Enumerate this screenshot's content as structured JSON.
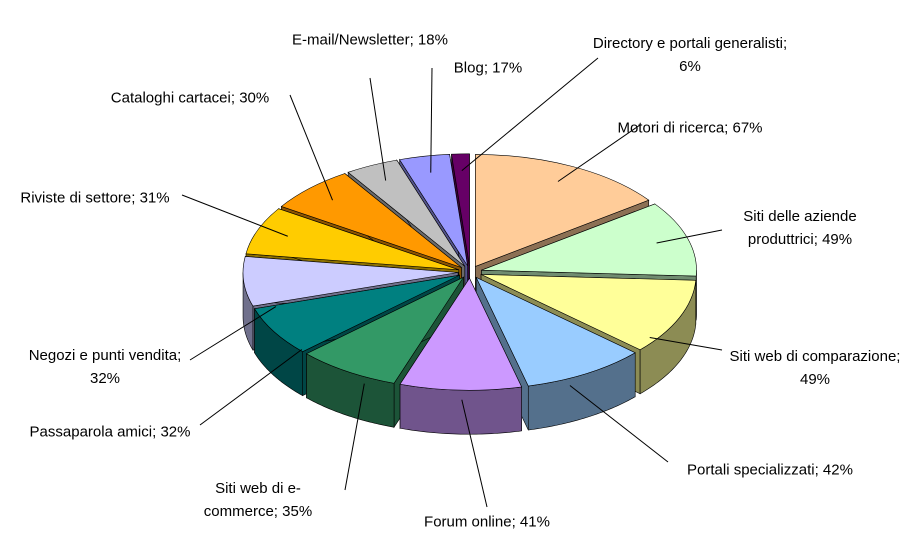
{
  "chart_data": {
    "type": "pie3d",
    "categories": [
      "Motori di ricerca;",
      "Siti delle aziende produttrici;",
      "Siti web di comparazione;",
      "Portali specializzati;",
      "Forum online;",
      "Siti web di e-commerce;",
      "Passaparola amici;",
      "Negozi e punti vendita;",
      "Riviste di settore;",
      "Cataloghi cartacei;",
      "E-mail/Newsletter;",
      "Blog;",
      "Directory e portali generalisti;"
    ],
    "values": [
      67,
      49,
      49,
      42,
      41,
      35,
      32,
      32,
      31,
      30,
      18,
      17,
      6
    ],
    "value_labels": [
      "67%",
      "49%",
      "49%",
      "42%",
      "41%",
      "35%",
      "32%",
      "32%",
      "31%",
      "30%",
      "18%",
      "17%",
      "6%"
    ],
    "colors": [
      "#FFCC99",
      "#CCFFCC",
      "#FFFF99",
      "#99CCFF",
      "#CC99FF",
      "#339966",
      "#008080",
      "#CCCCFF",
      "#FFCC00",
      "#FF9900",
      "#C0C0C0",
      "#9999FF",
      "#660066"
    ]
  }
}
